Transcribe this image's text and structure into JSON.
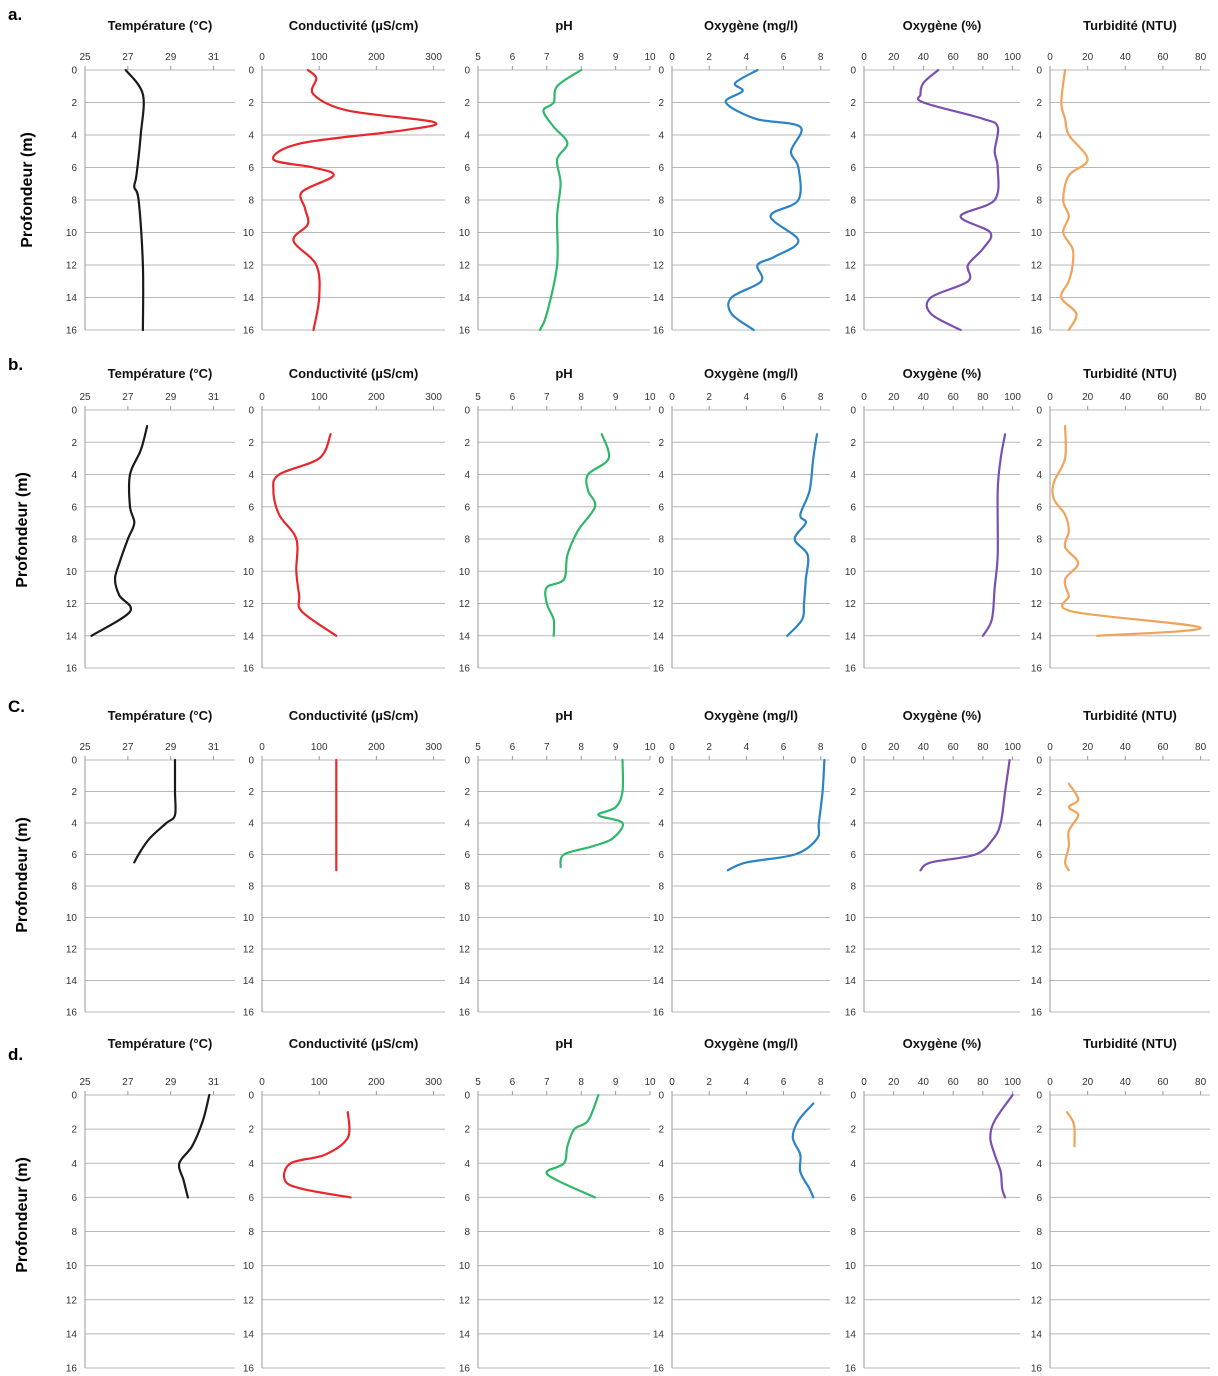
{
  "colors": {
    "temperature": "#1a1a1a",
    "conductivity": "#e8262b",
    "ph": "#2fb86a",
    "oxygen_mg": "#2a83c6",
    "oxygen_pct": "#7b4fb0",
    "turbidity": "#f0a35a",
    "grid": "#b8b8b8"
  },
  "ylabel": "Profondeur (m)",
  "titles": [
    "Température (°C)",
    "Conductivité (µS/cm)",
    "pH",
    "Oxygène (mg/l)",
    "Oxygène (%)",
    "Turbidité (NTU)"
  ],
  "chart_data": {
    "type": "line",
    "orientation": "depth-profile",
    "ylim": [
      16,
      0
    ],
    "yticks": [
      0,
      2,
      4,
      6,
      8,
      10,
      12,
      14,
      16
    ],
    "grid": true,
    "panels": [
      {
        "title": "Température (°C)",
        "xlim": [
          25,
          32
        ],
        "xticks": [
          25,
          27,
          29,
          31
        ]
      },
      {
        "title": "Conductivité (µS/cm)",
        "xlim": [
          0,
          320
        ],
        "xticks": [
          0,
          100,
          200,
          300
        ]
      },
      {
        "title": "pH",
        "xlim": [
          5,
          10
        ],
        "xticks": [
          5,
          6,
          7,
          8,
          9,
          10
        ]
      },
      {
        "title": "Oxygène (mg/l)",
        "xlim": [
          0,
          8.5
        ],
        "xticks": [
          0,
          2,
          4,
          6,
          8
        ]
      },
      {
        "title": "Oxygène (%)",
        "xlim": [
          0,
          105
        ],
        "xticks": [
          0,
          20,
          40,
          60,
          80,
          100
        ]
      },
      {
        "title": "Turbidité (NTU)",
        "xlim": [
          0,
          85
        ],
        "xticks": [
          0,
          20,
          40,
          60,
          80
        ]
      }
    ],
    "rows": [
      {
        "label": "a.",
        "profiles": [
          [
            [
              26.9,
              0
            ],
            [
              27.7,
              1.5
            ],
            [
              27.6,
              4
            ],
            [
              27.4,
              6.5
            ],
            [
              27.3,
              7.2
            ],
            [
              27.5,
              8
            ],
            [
              27.7,
              12
            ],
            [
              27.7,
              16
            ]
          ],
          [
            [
              80,
              0
            ],
            [
              95,
              0.5
            ],
            [
              90,
              1.5
            ],
            [
              150,
              2.5
            ],
            [
              300,
              3.2
            ],
            [
              250,
              3.7
            ],
            [
              70,
              4.5
            ],
            [
              20,
              5.5
            ],
            [
              90,
              6
            ],
            [
              125,
              6.5
            ],
            [
              70,
              7.5
            ],
            [
              75,
              8.5
            ],
            [
              80,
              9.5
            ],
            [
              55,
              10.5
            ],
            [
              95,
              12
            ],
            [
              100,
              14
            ],
            [
              90,
              16
            ]
          ],
          [
            [
              8,
              0
            ],
            [
              7.3,
              1
            ],
            [
              7.2,
              2
            ],
            [
              6.9,
              2.5
            ],
            [
              7.2,
              3.5
            ],
            [
              7.6,
              4.5
            ],
            [
              7.3,
              5.5
            ],
            [
              7.4,
              7
            ],
            [
              7.3,
              9
            ],
            [
              7.3,
              12
            ],
            [
              7,
              15
            ],
            [
              6.8,
              16
            ]
          ],
          [
            [
              4.6,
              0
            ],
            [
              3.4,
              0.8
            ],
            [
              3.8,
              1.3
            ],
            [
              2.9,
              2
            ],
            [
              4.5,
              3
            ],
            [
              6.9,
              3.5
            ],
            [
              6.4,
              5
            ],
            [
              6.8,
              6
            ],
            [
              6.8,
              8
            ],
            [
              5.3,
              9
            ],
            [
              6.8,
              10.5
            ],
            [
              5.5,
              11.5
            ],
            [
              4.6,
              12
            ],
            [
              4.8,
              13
            ],
            [
              3.2,
              14
            ],
            [
              3.2,
              15
            ],
            [
              4.4,
              16
            ]
          ],
          [
            [
              50,
              0
            ],
            [
              40,
              0.8
            ],
            [
              38,
              1.5
            ],
            [
              40,
              2
            ],
            [
              80,
              3
            ],
            [
              90,
              3.5
            ],
            [
              88,
              5
            ],
            [
              90,
              6
            ],
            [
              88,
              8
            ],
            [
              65,
              9
            ],
            [
              85,
              10
            ],
            [
              80,
              11
            ],
            [
              70,
              12
            ],
            [
              70,
              13
            ],
            [
              45,
              14
            ],
            [
              45,
              15
            ],
            [
              65,
              16
            ]
          ],
          [
            [
              8,
              0
            ],
            [
              6,
              2
            ],
            [
              8,
              3
            ],
            [
              10,
              4
            ],
            [
              20,
              5.5
            ],
            [
              10,
              6.5
            ],
            [
              7,
              8
            ],
            [
              10,
              9
            ],
            [
              7,
              10
            ],
            [
              12,
              11
            ],
            [
              12,
              12
            ],
            [
              10,
              13
            ],
            [
              6,
              14
            ],
            [
              14,
              15
            ],
            [
              10,
              16
            ]
          ]
        ]
      },
      {
        "label": "b.",
        "profiles": [
          [
            [
              27.9,
              1
            ],
            [
              27.6,
              2.5
            ],
            [
              27.1,
              4
            ],
            [
              27.1,
              6
            ],
            [
              27.3,
              7
            ],
            [
              27,
              8
            ],
            [
              26.6,
              9.5
            ],
            [
              26.4,
              10.5
            ],
            [
              26.6,
              11.5
            ],
            [
              27.1,
              12.5
            ],
            [
              25.3,
              14
            ]
          ],
          [
            [
              120,
              1.5
            ],
            [
              100,
              3
            ],
            [
              30,
              4
            ],
            [
              20,
              5
            ],
            [
              30,
              6.5
            ],
            [
              60,
              8
            ],
            [
              60,
              10
            ],
            [
              65,
              11.5
            ],
            [
              70,
              12.5
            ],
            [
              130,
              14
            ]
          ],
          [
            [
              8.6,
              1.5
            ],
            [
              8.8,
              3
            ],
            [
              8.2,
              4
            ],
            [
              8.2,
              5
            ],
            [
              8.4,
              6
            ],
            [
              7.9,
              7.5
            ],
            [
              7.6,
              9
            ],
            [
              7.5,
              10.5
            ],
            [
              7,
              11
            ],
            [
              7,
              12
            ],
            [
              7.2,
              13
            ],
            [
              7.2,
              14
            ]
          ],
          [
            [
              7.8,
              1.5
            ],
            [
              7.6,
              3
            ],
            [
              7.4,
              5
            ],
            [
              6.9,
              6.5
            ],
            [
              7.2,
              7
            ],
            [
              6.6,
              8
            ],
            [
              7.3,
              9
            ],
            [
              7.2,
              10.5
            ],
            [
              7.1,
              12
            ],
            [
              7,
              13
            ],
            [
              6.2,
              14
            ]
          ],
          [
            [
              95,
              1.5
            ],
            [
              92,
              3
            ],
            [
              90,
              5
            ],
            [
              90,
              9
            ],
            [
              88,
              11
            ],
            [
              86,
              13
            ],
            [
              80,
              14
            ]
          ],
          [
            [
              8,
              1
            ],
            [
              8,
              3
            ],
            [
              2,
              4.5
            ],
            [
              2,
              5.5
            ],
            [
              8,
              6.5
            ],
            [
              10,
              7.5
            ],
            [
              8,
              8.5
            ],
            [
              15,
              9.5
            ],
            [
              8,
              10.5
            ],
            [
              10,
              11.5
            ],
            [
              12,
              12.5
            ],
            [
              80,
              13.5
            ],
            [
              25,
              14
            ]
          ]
        ]
      },
      {
        "label": "C.",
        "profiles": [
          [
            [
              29.2,
              0
            ],
            [
              29.2,
              2
            ],
            [
              29.2,
              3.5
            ],
            [
              28.8,
              4
            ],
            [
              28,
              5
            ],
            [
              27.5,
              6
            ],
            [
              27.3,
              6.5
            ]
          ],
          [
            [
              130,
              0
            ],
            [
              130,
              2
            ],
            [
              130,
              4
            ],
            [
              130,
              6
            ],
            [
              130,
              7
            ]
          ],
          [
            [
              9.2,
              0
            ],
            [
              9.2,
              2
            ],
            [
              9,
              3
            ],
            [
              8.5,
              3.5
            ],
            [
              9.2,
              4
            ],
            [
              8.9,
              5
            ],
            [
              8.3,
              5.5
            ],
            [
              7.5,
              6
            ],
            [
              7.4,
              6.8
            ]
          ],
          [
            [
              8.2,
              0
            ],
            [
              8.1,
              2
            ],
            [
              7.9,
              4
            ],
            [
              7.8,
              5
            ],
            [
              6.6,
              6
            ],
            [
              4,
              6.5
            ],
            [
              3,
              7
            ]
          ],
          [
            [
              98,
              0
            ],
            [
              95,
              2
            ],
            [
              92,
              4
            ],
            [
              87,
              5
            ],
            [
              75,
              6
            ],
            [
              45,
              6.5
            ],
            [
              38,
              7
            ]
          ],
          [
            [
              10,
              1.5
            ],
            [
              15,
              2.5
            ],
            [
              10,
              3
            ],
            [
              15,
              3.5
            ],
            [
              10,
              4.5
            ],
            [
              10,
              5.5
            ],
            [
              8,
              6.5
            ],
            [
              10,
              7
            ]
          ]
        ]
      },
      {
        "label": "d.",
        "profiles": [
          [
            [
              30.8,
              0
            ],
            [
              30.5,
              1.5
            ],
            [
              30,
              3
            ],
            [
              29.4,
              4
            ],
            [
              29.6,
              5
            ],
            [
              29.8,
              6
            ]
          ],
          [
            [
              150,
              1
            ],
            [
              150,
              2.5
            ],
            [
              110,
              3.5
            ],
            [
              50,
              4
            ],
            [
              40,
              5
            ],
            [
              70,
              5.5
            ],
            [
              155,
              6
            ]
          ],
          [
            [
              8.5,
              0
            ],
            [
              8.2,
              1.5
            ],
            [
              7.8,
              2
            ],
            [
              7.6,
              3
            ],
            [
              7.5,
              4
            ],
            [
              7,
              4.5
            ],
            [
              7.3,
              5
            ],
            [
              8.4,
              6
            ]
          ],
          [
            [
              7.6,
              0.5
            ],
            [
              6.8,
              1.5
            ],
            [
              6.5,
              2.5
            ],
            [
              6.9,
              3.5
            ],
            [
              6.9,
              4.5
            ],
            [
              7.4,
              5.5
            ],
            [
              7.6,
              6
            ]
          ],
          [
            [
              100,
              0
            ],
            [
              88,
              1.5
            ],
            [
              85,
              2.5
            ],
            [
              88,
              3.5
            ],
            [
              92,
              4.5
            ],
            [
              93,
              5.5
            ],
            [
              95,
              6
            ]
          ],
          [
            [
              9,
              1
            ],
            [
              12,
              1.5
            ],
            [
              13,
              2
            ],
            [
              13,
              3
            ]
          ]
        ]
      }
    ]
  }
}
